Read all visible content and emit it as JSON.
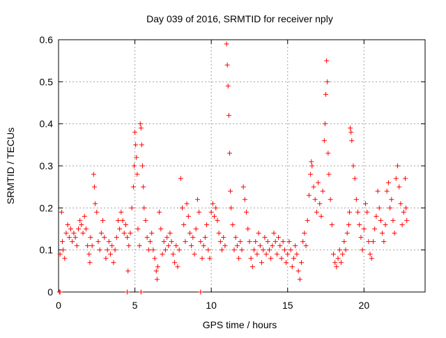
{
  "chart_data": {
    "type": "scatter",
    "title": "Day 039 of 2016, SRMTID for receiver nply",
    "xlabel": "GPS time / hours",
    "ylabel": "SRMTID / TECUs",
    "xlim": [
      0,
      24
    ],
    "ylim": [
      0,
      0.6
    ],
    "x_ticks": [
      0,
      5,
      10,
      15,
      20
    ],
    "x_tick_labels": [
      "0",
      "5",
      "10",
      "15",
      "20"
    ],
    "y_ticks": [
      0,
      0.1,
      0.2,
      0.3,
      0.4,
      0.5,
      0.6
    ],
    "y_tick_labels": [
      "0",
      "0.1",
      "0.2",
      "0.3",
      "0.4",
      "0.5",
      "0.6"
    ],
    "grid": true,
    "marker": "plus",
    "series": [
      {
        "name": "SRMTID",
        "color": "#ff0000",
        "points": [
          [
            0.05,
            0.0
          ],
          [
            0.1,
            0.0
          ],
          [
            4.5,
            0.0
          ],
          [
            5.4,
            0.0
          ],
          [
            9.3,
            0.0
          ],
          [
            0.1,
            0.09
          ],
          [
            0.2,
            0.19
          ],
          [
            0.25,
            0.12
          ],
          [
            0.3,
            0.1
          ],
          [
            0.4,
            0.08
          ],
          [
            0.5,
            0.14
          ],
          [
            0.6,
            0.16
          ],
          [
            0.7,
            0.13
          ],
          [
            0.8,
            0.15
          ],
          [
            0.9,
            0.12
          ],
          [
            1.0,
            0.14
          ],
          [
            1.1,
            0.13
          ],
          [
            1.2,
            0.11
          ],
          [
            1.3,
            0.15
          ],
          [
            1.4,
            0.17
          ],
          [
            1.5,
            0.16
          ],
          [
            1.6,
            0.14
          ],
          [
            1.7,
            0.18
          ],
          [
            1.8,
            0.15
          ],
          [
            1.9,
            0.11
          ],
          [
            2.0,
            0.09
          ],
          [
            2.05,
            0.07
          ],
          [
            2.1,
            0.13
          ],
          [
            2.2,
            0.11
          ],
          [
            2.3,
            0.28
          ],
          [
            2.35,
            0.25
          ],
          [
            2.4,
            0.21
          ],
          [
            2.5,
            0.19
          ],
          [
            2.6,
            0.12
          ],
          [
            2.7,
            0.1
          ],
          [
            2.8,
            0.14
          ],
          [
            2.9,
            0.17
          ],
          [
            3.0,
            0.13
          ],
          [
            3.1,
            0.08
          ],
          [
            3.2,
            0.1
          ],
          [
            3.3,
            0.12
          ],
          [
            3.4,
            0.09
          ],
          [
            3.5,
            0.11
          ],
          [
            3.6,
            0.07
          ],
          [
            3.7,
            0.1
          ],
          [
            3.8,
            0.13
          ],
          [
            3.9,
            0.17
          ],
          [
            4.0,
            0.15
          ],
          [
            4.1,
            0.19
          ],
          [
            4.2,
            0.17
          ],
          [
            4.3,
            0.14
          ],
          [
            4.4,
            0.16
          ],
          [
            4.5,
            0.13
          ],
          [
            4.55,
            0.05
          ],
          [
            4.6,
            0.11
          ],
          [
            4.7,
            0.14
          ],
          [
            4.8,
            0.2
          ],
          [
            4.9,
            0.25
          ],
          [
            4.95,
            0.3
          ],
          [
            5.0,
            0.38
          ],
          [
            5.05,
            0.35
          ],
          [
            5.1,
            0.32
          ],
          [
            5.15,
            0.28
          ],
          [
            5.2,
            0.15
          ],
          [
            5.3,
            0.11
          ],
          [
            5.35,
            0.4
          ],
          [
            5.4,
            0.39
          ],
          [
            5.45,
            0.35
          ],
          [
            5.5,
            0.3
          ],
          [
            5.55,
            0.25
          ],
          [
            5.6,
            0.2
          ],
          [
            5.7,
            0.17
          ],
          [
            5.8,
            0.13
          ],
          [
            5.9,
            0.1
          ],
          [
            6.0,
            0.12
          ],
          [
            6.1,
            0.14
          ],
          [
            6.2,
            0.1
          ],
          [
            6.3,
            0.08
          ],
          [
            6.4,
            0.05
          ],
          [
            6.45,
            0.03
          ],
          [
            6.5,
            0.06
          ],
          [
            6.6,
            0.19
          ],
          [
            6.7,
            0.15
          ],
          [
            6.8,
            0.09
          ],
          [
            6.9,
            0.12
          ],
          [
            7.0,
            0.1
          ],
          [
            7.1,
            0.13
          ],
          [
            7.2,
            0.11
          ],
          [
            7.3,
            0.14
          ],
          [
            7.4,
            0.12
          ],
          [
            7.5,
            0.09
          ],
          [
            7.6,
            0.07
          ],
          [
            7.7,
            0.11
          ],
          [
            7.8,
            0.06
          ],
          [
            7.9,
            0.1
          ],
          [
            8.0,
            0.27
          ],
          [
            8.1,
            0.2
          ],
          [
            8.2,
            0.16
          ],
          [
            8.3,
            0.12
          ],
          [
            8.4,
            0.21
          ],
          [
            8.5,
            0.18
          ],
          [
            8.6,
            0.14
          ],
          [
            8.7,
            0.11
          ],
          [
            8.8,
            0.13
          ],
          [
            8.9,
            0.09
          ],
          [
            9.0,
            0.15
          ],
          [
            9.1,
            0.22
          ],
          [
            9.2,
            0.19
          ],
          [
            9.3,
            0.12
          ],
          [
            9.4,
            0.08
          ],
          [
            9.5,
            0.11
          ],
          [
            9.6,
            0.13
          ],
          [
            9.7,
            0.16
          ],
          [
            9.8,
            0.1
          ],
          [
            9.9,
            0.08
          ],
          [
            10.0,
            0.19
          ],
          [
            10.1,
            0.21
          ],
          [
            10.2,
            0.18
          ],
          [
            10.3,
            0.2
          ],
          [
            10.4,
            0.17
          ],
          [
            10.5,
            0.14
          ],
          [
            10.6,
            0.12
          ],
          [
            10.7,
            0.1
          ],
          [
            10.8,
            0.13
          ],
          [
            10.9,
            0.11
          ],
          [
            11.0,
            0.59
          ],
          [
            11.05,
            0.54
          ],
          [
            11.1,
            0.49
          ],
          [
            11.15,
            0.42
          ],
          [
            11.2,
            0.33
          ],
          [
            11.25,
            0.24
          ],
          [
            11.3,
            0.2
          ],
          [
            11.4,
            0.16
          ],
          [
            11.5,
            0.1
          ],
          [
            11.6,
            0.13
          ],
          [
            11.7,
            0.11
          ],
          [
            11.8,
            0.08
          ],
          [
            11.9,
            0.12
          ],
          [
            12.0,
            0.1
          ],
          [
            12.1,
            0.25
          ],
          [
            12.2,
            0.22
          ],
          [
            12.3,
            0.19
          ],
          [
            12.4,
            0.15
          ],
          [
            12.5,
            0.12
          ],
          [
            12.6,
            0.08
          ],
          [
            12.7,
            0.06
          ],
          [
            12.8,
            0.1
          ],
          [
            12.9,
            0.12
          ],
          [
            13.0,
            0.09
          ],
          [
            13.1,
            0.14
          ],
          [
            13.2,
            0.11
          ],
          [
            13.3,
            0.07
          ],
          [
            13.4,
            0.1
          ],
          [
            13.5,
            0.13
          ],
          [
            13.6,
            0.09
          ],
          [
            13.7,
            0.12
          ],
          [
            13.8,
            0.1
          ],
          [
            13.9,
            0.08
          ],
          [
            14.0,
            0.11
          ],
          [
            14.1,
            0.14
          ],
          [
            14.2,
            0.12
          ],
          [
            14.3,
            0.09
          ],
          [
            14.4,
            0.13
          ],
          [
            14.5,
            0.11
          ],
          [
            14.6,
            0.08
          ],
          [
            14.7,
            0.12
          ],
          [
            14.8,
            0.1
          ],
          [
            14.9,
            0.07
          ],
          [
            15.0,
            0.09
          ],
          [
            15.1,
            0.12
          ],
          [
            15.2,
            0.1
          ],
          [
            15.3,
            0.06
          ],
          [
            15.4,
            0.08
          ],
          [
            15.5,
            0.11
          ],
          [
            15.6,
            0.09
          ],
          [
            15.7,
            0.05
          ],
          [
            15.8,
            0.03
          ],
          [
            15.9,
            0.07
          ],
          [
            16.0,
            0.12
          ],
          [
            16.1,
            0.14
          ],
          [
            16.2,
            0.11
          ],
          [
            16.3,
            0.17
          ],
          [
            16.4,
            0.23
          ],
          [
            16.5,
            0.28
          ],
          [
            16.55,
            0.31
          ],
          [
            16.6,
            0.3
          ],
          [
            16.7,
            0.25
          ],
          [
            16.8,
            0.22
          ],
          [
            16.9,
            0.19
          ],
          [
            17.0,
            0.26
          ],
          [
            17.1,
            0.21
          ],
          [
            17.2,
            0.18
          ],
          [
            17.3,
            0.24
          ],
          [
            17.4,
            0.36
          ],
          [
            17.45,
            0.4
          ],
          [
            17.5,
            0.47
          ],
          [
            17.55,
            0.55
          ],
          [
            17.6,
            0.5
          ],
          [
            17.65,
            0.33
          ],
          [
            17.7,
            0.28
          ],
          [
            17.8,
            0.22
          ],
          [
            17.9,
            0.16
          ],
          [
            18.0,
            0.09
          ],
          [
            18.1,
            0.07
          ],
          [
            18.2,
            0.06
          ],
          [
            18.3,
            0.08
          ],
          [
            18.4,
            0.1
          ],
          [
            18.5,
            0.07
          ],
          [
            18.6,
            0.09
          ],
          [
            18.7,
            0.12
          ],
          [
            18.8,
            0.1
          ],
          [
            18.9,
            0.14
          ],
          [
            19.0,
            0.16
          ],
          [
            19.05,
            0.19
          ],
          [
            19.1,
            0.39
          ],
          [
            19.15,
            0.38
          ],
          [
            19.2,
            0.36
          ],
          [
            19.3,
            0.3
          ],
          [
            19.4,
            0.27
          ],
          [
            19.5,
            0.22
          ],
          [
            19.6,
            0.19
          ],
          [
            19.7,
            0.16
          ],
          [
            19.8,
            0.13
          ],
          [
            19.9,
            0.1
          ],
          [
            20.0,
            0.15
          ],
          [
            20.1,
            0.21
          ],
          [
            20.2,
            0.19
          ],
          [
            20.3,
            0.12
          ],
          [
            20.4,
            0.09
          ],
          [
            20.5,
            0.08
          ],
          [
            20.6,
            0.12
          ],
          [
            20.7,
            0.15
          ],
          [
            20.8,
            0.18
          ],
          [
            20.9,
            0.24
          ],
          [
            21.0,
            0.2
          ],
          [
            21.1,
            0.17
          ],
          [
            21.2,
            0.14
          ],
          [
            21.3,
            0.12
          ],
          [
            21.4,
            0.16
          ],
          [
            21.5,
            0.24
          ],
          [
            21.6,
            0.26
          ],
          [
            21.7,
            0.2
          ],
          [
            21.8,
            0.22
          ],
          [
            21.9,
            0.17
          ],
          [
            22.0,
            0.14
          ],
          [
            22.1,
            0.27
          ],
          [
            22.2,
            0.3
          ],
          [
            22.3,
            0.25
          ],
          [
            22.4,
            0.21
          ],
          [
            22.5,
            0.16
          ],
          [
            22.6,
            0.19
          ],
          [
            22.7,
            0.27
          ],
          [
            22.75,
            0.2
          ],
          [
            22.8,
            0.17
          ]
        ]
      }
    ]
  }
}
